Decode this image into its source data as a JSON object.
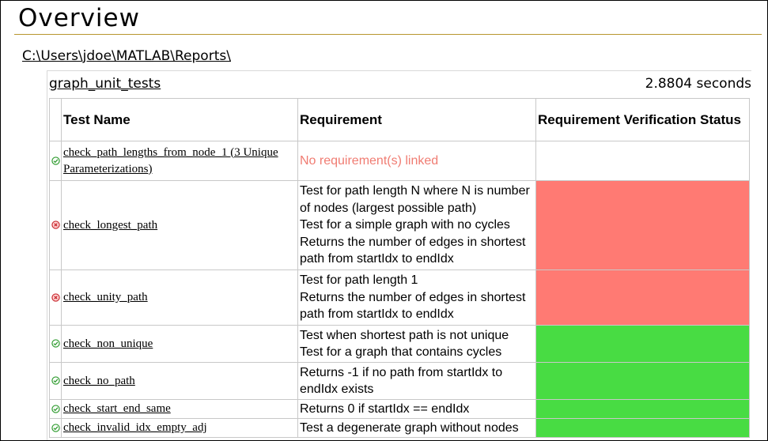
{
  "page": {
    "title": "Overview",
    "report_path": "C:\\Users\\jdoe\\MATLAB\\Reports\\"
  },
  "suite": {
    "name": "graph_unit_tests",
    "duration": "2.8804 seconds"
  },
  "table": {
    "headers": {
      "test_name": "Test Name",
      "requirement": "Requirement",
      "status": "Requirement Verification Status"
    },
    "rows": [
      {
        "result": "passed",
        "icon": "check-circle-icon",
        "test": "check_path_lengths_from_node_1 (3 Unique Parameterizations)",
        "requirements": [
          "No requirement(s) linked"
        ],
        "req_linked": false,
        "status": "none",
        "status_color": "#ffffff"
      },
      {
        "result": "failed",
        "icon": "x-circle-icon",
        "test": "check_longest_path",
        "requirements": [
          "Test for path length N where N is number of nodes (largest possible path)",
          "Test for a simple graph with no cycles",
          "Returns the number of edges in shortest path from startIdx to endIdx"
        ],
        "req_linked": true,
        "status": "failed",
        "status_color": "#ff7a73"
      },
      {
        "result": "failed",
        "icon": "x-circle-icon",
        "test": "check_unity_path",
        "requirements": [
          "Test for path length 1",
          "Returns the number of edges in shortest path from startIdx to endIdx"
        ],
        "req_linked": true,
        "status": "failed",
        "status_color": "#ff7a73"
      },
      {
        "result": "passed",
        "icon": "check-circle-icon",
        "test": "check_non_unique",
        "requirements": [
          "Test when shortest path is not unique",
          "Test for a graph that contains cycles"
        ],
        "req_linked": true,
        "status": "passed",
        "status_color": "#48dc43"
      },
      {
        "result": "passed",
        "icon": "check-circle-icon",
        "test": "check_no_path",
        "requirements": [
          "Returns -1 if no path from startIdx to endIdx exists"
        ],
        "req_linked": true,
        "status": "passed",
        "status_color": "#48dc43"
      },
      {
        "result": "passed",
        "icon": "check-circle-icon",
        "test": "check_start_end_same",
        "requirements": [
          "Returns 0 if startIdx == endIdx"
        ],
        "req_linked": true,
        "status": "passed",
        "status_color": "#48dc43"
      },
      {
        "result": "passed",
        "icon": "check-circle-icon",
        "test": "check_invalid_idx_empty_adj",
        "requirements": [
          "Test a degenerate graph without nodes"
        ],
        "req_linked": true,
        "status": "passed",
        "status_color": "#48dc43"
      }
    ]
  }
}
